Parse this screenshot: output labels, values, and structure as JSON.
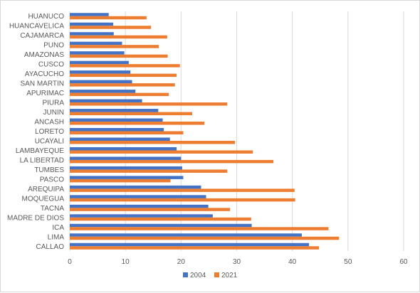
{
  "chart_data": {
    "type": "bar",
    "orientation": "horizontal",
    "title": "",
    "xlabel": "",
    "ylabel": "",
    "categories": [
      "CALLAO",
      "LIMA",
      "ICA",
      "MADRE DE DIOS",
      "TACNA",
      "MOQUEGUA",
      "AREQUIPA",
      "PASCO",
      "TUMBES",
      "LA LIBERTAD",
      "LAMBAYEQUE",
      "UCAYALI",
      "LORETO",
      "ANCASH",
      "JUNIN",
      "PIURA",
      "APURIMAC",
      "SAN MARTIN",
      "AYACUCHO",
      "CUSCO",
      "AMAZONAS",
      "PUNO",
      "CAJAMARCA",
      "HUANCAVELICA",
      "HUANUCO"
    ],
    "series": [
      {
        "name": "2004",
        "color": "#4472C4",
        "values": [
          43.0,
          41.7,
          32.7,
          25.7,
          24.9,
          24.5,
          23.6,
          20.4,
          20.2,
          20.0,
          19.2,
          18.0,
          16.9,
          16.7,
          15.9,
          13.0,
          11.8,
          11.2,
          10.9,
          10.6,
          9.8,
          9.4,
          7.9,
          7.8,
          7.0
        ]
      },
      {
        "name": "2021",
        "color": "#ED7D31",
        "values": [
          44.8,
          48.4,
          46.5,
          32.6,
          28.8,
          40.5,
          40.4,
          18.1,
          28.3,
          36.6,
          32.9,
          29.7,
          20.4,
          24.2,
          22.0,
          28.3,
          17.8,
          18.9,
          19.2,
          19.8,
          17.6,
          16.0,
          17.5,
          14.6,
          13.8
        ]
      }
    ],
    "xlim": [
      0,
      60
    ],
    "xticks": [
      "0",
      "10",
      "20",
      "30",
      "40",
      "50",
      "60"
    ],
    "grid": "vertical",
    "legend": "bottom-center"
  }
}
